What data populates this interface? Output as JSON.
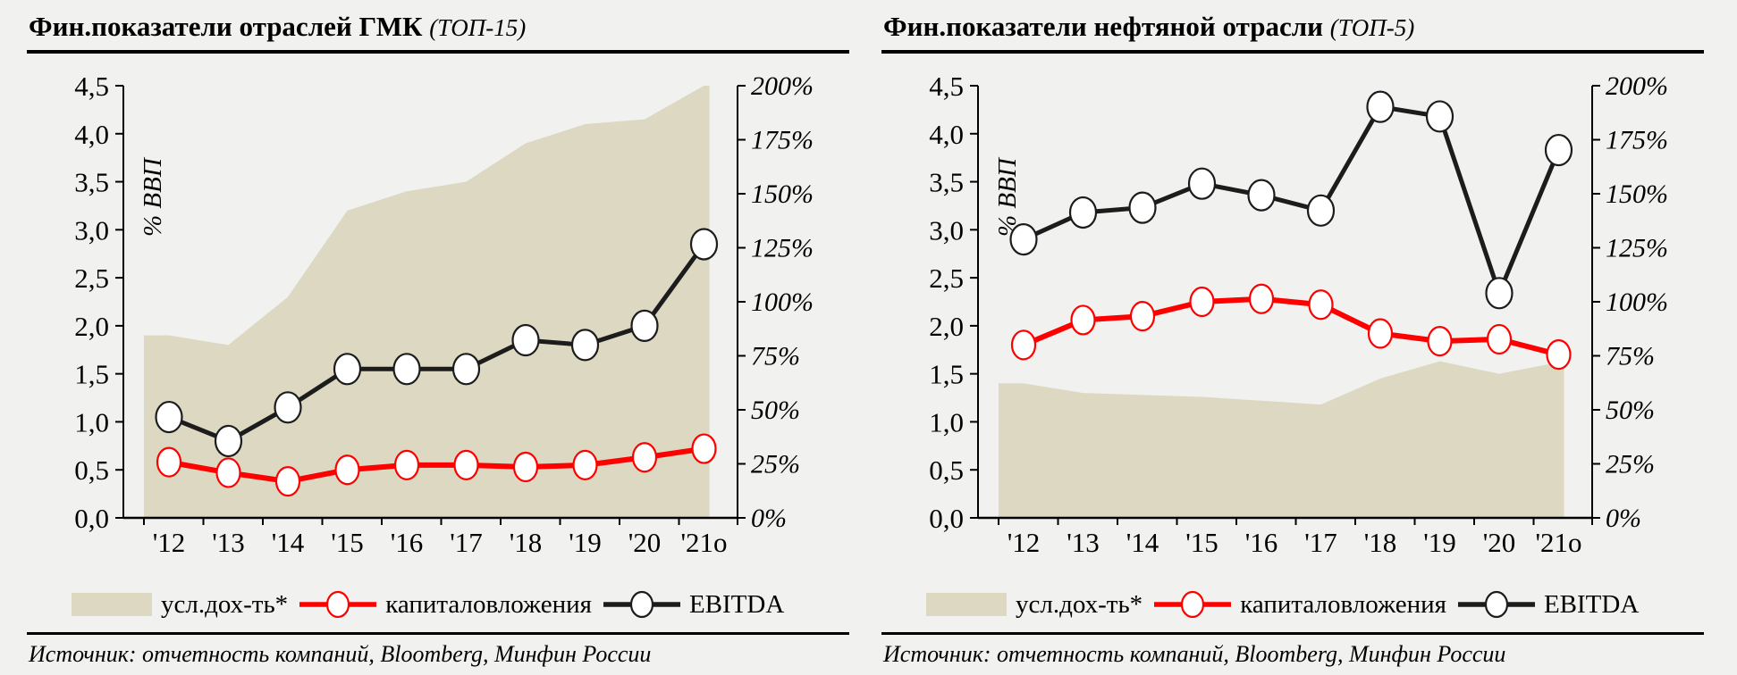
{
  "chart_data": [
    {
      "type": "combo-area-line",
      "title": "Фин.показатели отраслей ГМК",
      "title_note": "(ТОП-15)",
      "x": [
        "'12",
        "'13",
        "'14",
        "'15",
        "'16",
        "'17",
        "'18",
        "'19",
        "'20",
        "'21о"
      ],
      "y_left": {
        "label": "% ВВП",
        "min": 0,
        "max": 4.5,
        "ticks": [
          "0,0",
          "0,5",
          "1,0",
          "1,5",
          "2,0",
          "2,5",
          "3,0",
          "3,5",
          "4,0",
          "4,5"
        ]
      },
      "y_right": {
        "min": 0,
        "max": 200,
        "unit": "%",
        "note": "right axis 0–200% spans same pixels as left axis 0–4,5",
        "ticks": [
          "0%",
          "25%",
          "50%",
          "75%",
          "100%",
          "125%",
          "150%",
          "175%",
          "200%"
        ]
      },
      "grid": false,
      "legend_position": "bottom",
      "series": [
        {
          "name": "усл.дох-ть*",
          "type": "area",
          "color": "#dcd8c2",
          "values": [
            1.9,
            1.8,
            2.3,
            3.2,
            3.4,
            3.5,
            3.9,
            4.1,
            4.15,
            4.5
          ]
        },
        {
          "name": "капиталовложения",
          "type": "line",
          "color": "#fe0000",
          "marker": "circle",
          "width": 6,
          "values": [
            0.58,
            0.47,
            0.38,
            0.5,
            0.55,
            0.55,
            0.53,
            0.55,
            0.63,
            0.72
          ]
        },
        {
          "name": "EBITDA",
          "type": "line",
          "color": "#1c1c1c",
          "marker": "circle",
          "width": 5,
          "values": [
            1.05,
            0.8,
            1.15,
            1.55,
            1.55,
            1.55,
            1.85,
            1.8,
            2.0,
            2.85
          ]
        }
      ],
      "source": "Источник: отчетность компаний, Bloomberg, Минфин России"
    },
    {
      "type": "combo-area-line",
      "title": "Фин.показатели нефтяной отрасли",
      "title_note": "(ТОП-5)",
      "x": [
        "'12",
        "'13",
        "'14",
        "'15",
        "'16",
        "'17",
        "'18",
        "'19",
        "'20",
        "'21о"
      ],
      "y_left": {
        "label": "% ВВП",
        "min": 0,
        "max": 4.5,
        "ticks": [
          "0,0",
          "0,5",
          "1,0",
          "1,5",
          "2,0",
          "2,5",
          "3,0",
          "3,5",
          "4,0",
          "4,5"
        ]
      },
      "y_right": {
        "min": 0,
        "max": 200,
        "unit": "%",
        "note": "right axis 0–200% spans same pixels as left axis 0–4,5",
        "ticks": [
          "0%",
          "25%",
          "50%",
          "75%",
          "100%",
          "125%",
          "150%",
          "175%",
          "200%"
        ]
      },
      "grid": false,
      "legend_position": "bottom",
      "series": [
        {
          "name": "усл.дох-ть*",
          "type": "area",
          "color": "#dcd8c2",
          "values": [
            1.4,
            1.3,
            1.28,
            1.26,
            1.22,
            1.18,
            1.45,
            1.63,
            1.5,
            1.62
          ]
        },
        {
          "name": "капиталовложения",
          "type": "line",
          "color": "#fe0000",
          "marker": "circle",
          "width": 6,
          "values": [
            1.8,
            2.06,
            2.1,
            2.25,
            2.28,
            2.22,
            1.92,
            1.84,
            1.86,
            1.7
          ]
        },
        {
          "name": "EBITDA",
          "type": "line",
          "color": "#1c1c1c",
          "marker": "circle",
          "width": 5,
          "values": [
            2.9,
            3.18,
            3.23,
            3.48,
            3.36,
            3.2,
            4.28,
            4.18,
            2.34,
            3.83
          ]
        }
      ],
      "source": "Источник: отчетность компаний, Bloomberg, Минфин России"
    }
  ]
}
